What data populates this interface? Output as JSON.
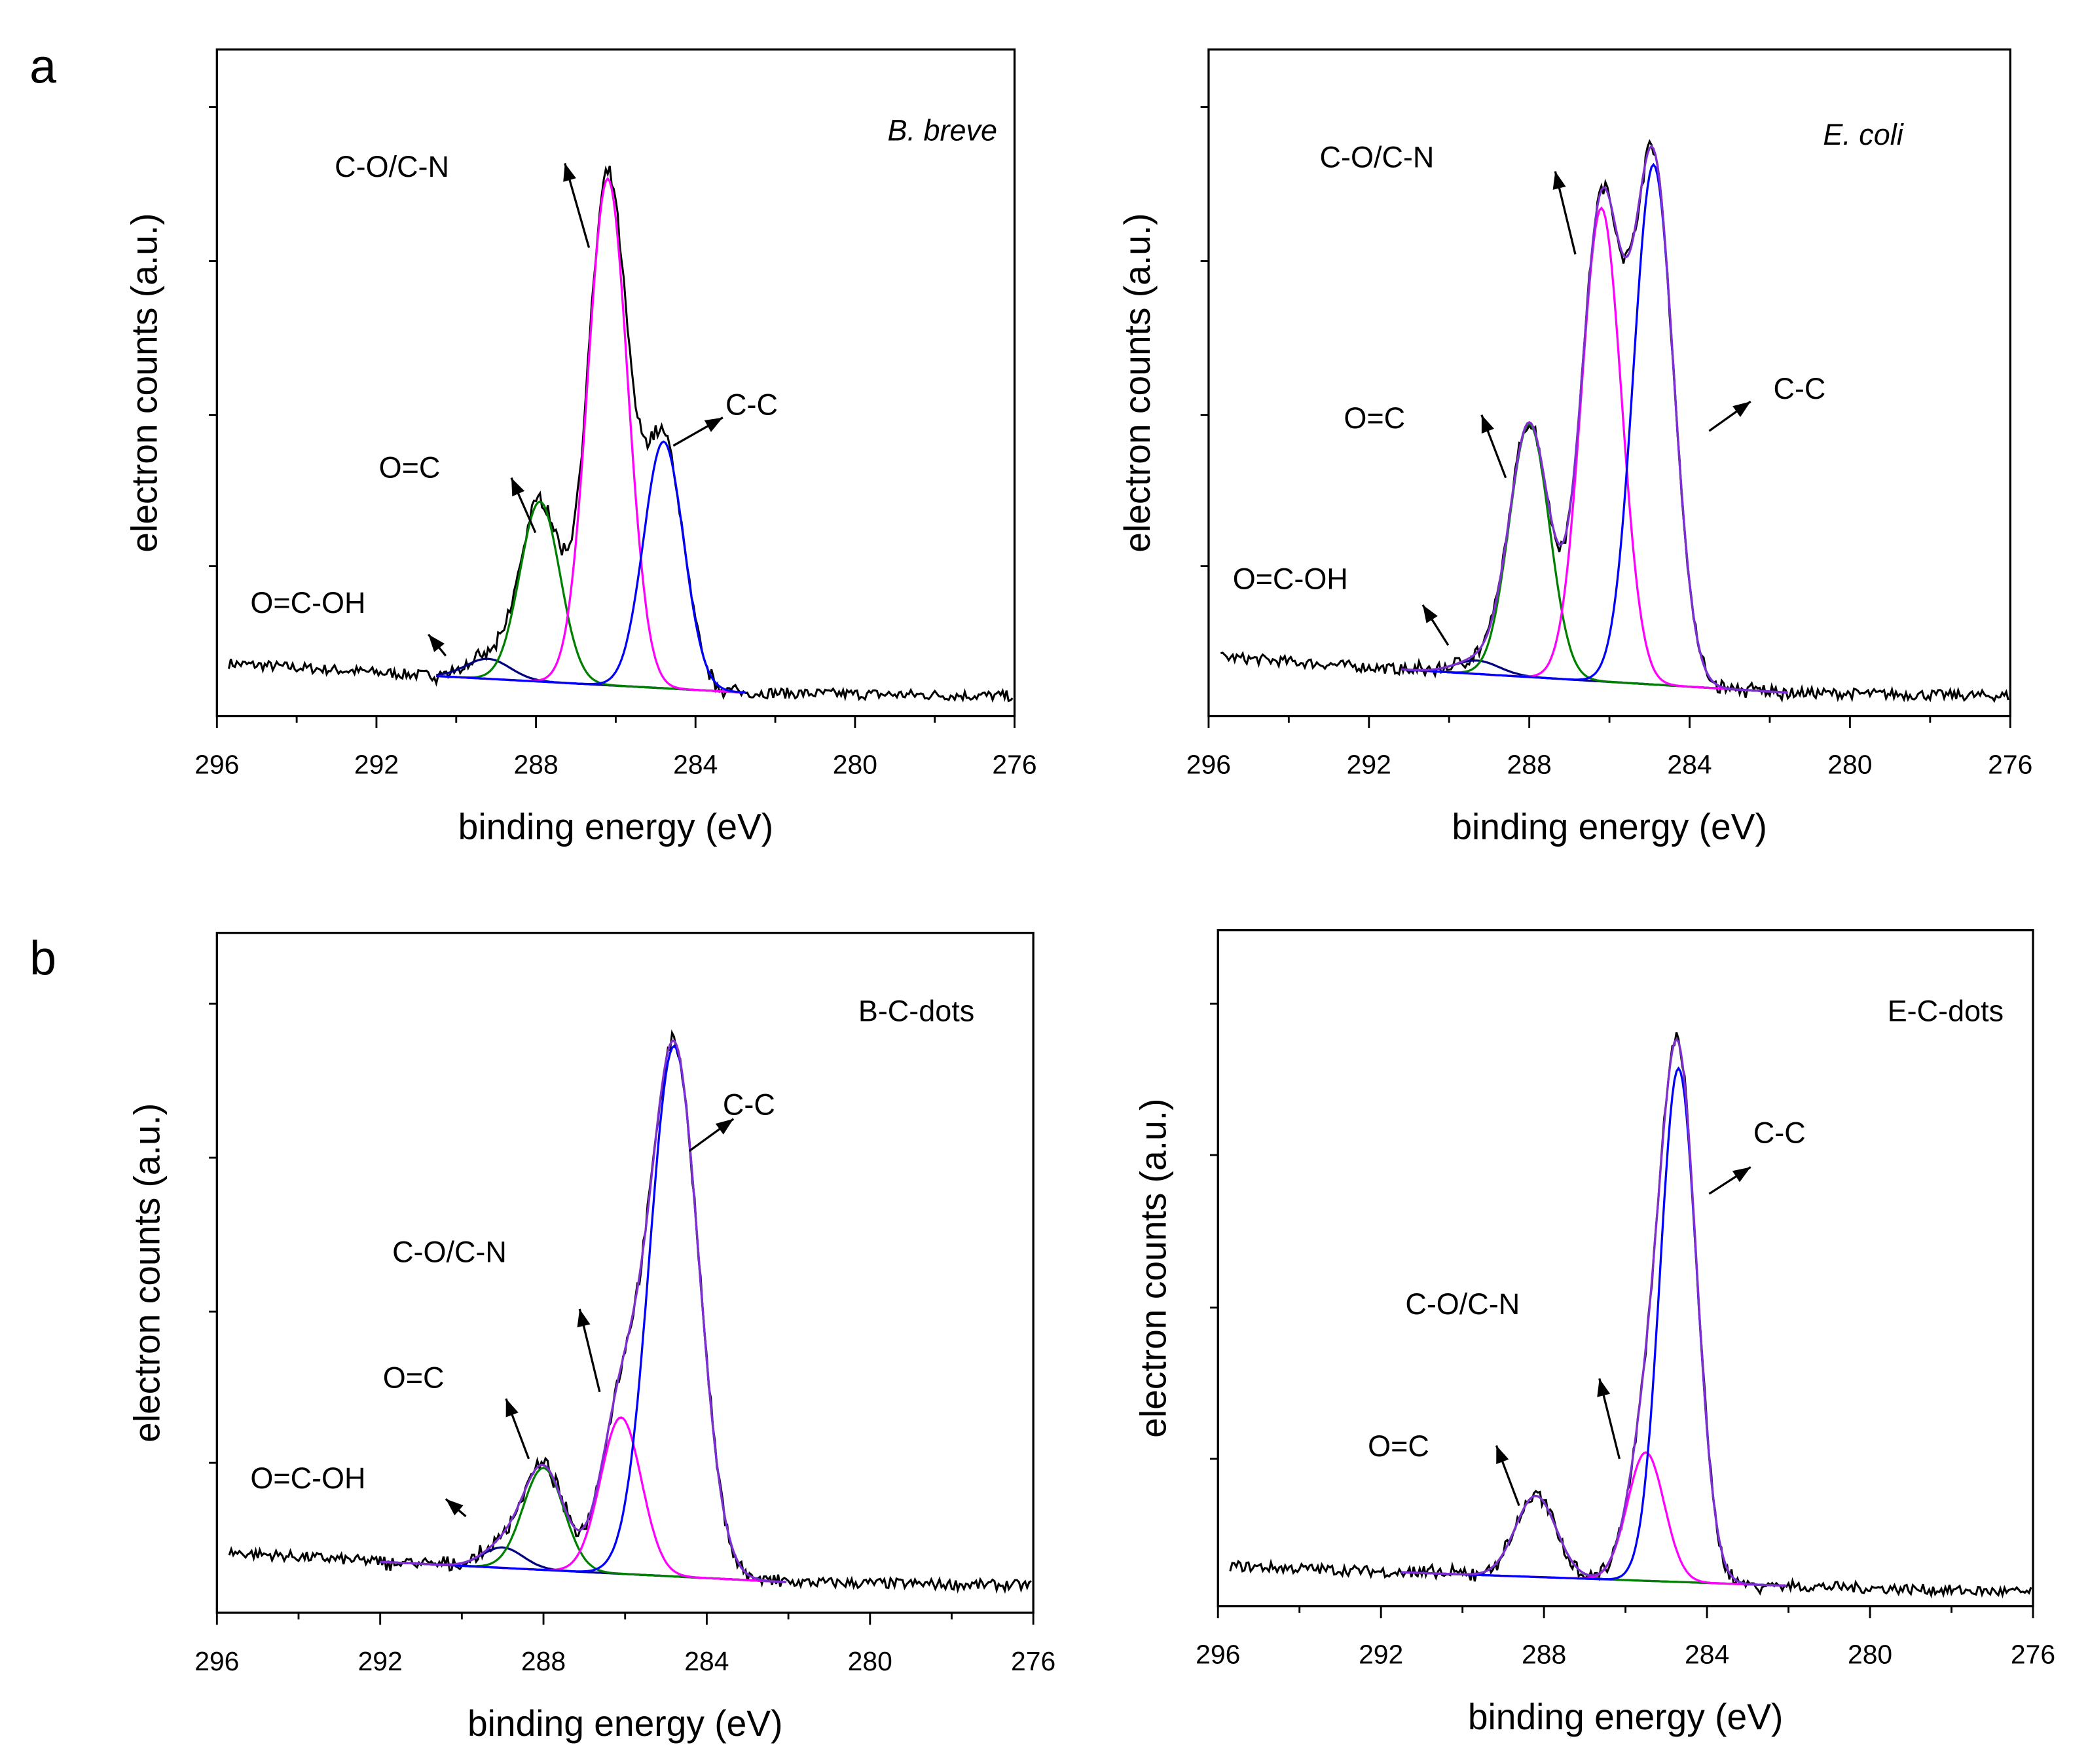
{
  "panel_letters": [
    "a",
    "b"
  ],
  "colors": {
    "envelope_a_left": "#000000",
    "envelope": "#7f2fd0",
    "C-C": "#0000ff",
    "C-O/C-N": "#ff00ff",
    "O=C": "#008000",
    "O=C-OH": "#000080",
    "baseline": "#1f1fb0",
    "baseline_marks": "#ff0000",
    "raw": "#000000"
  },
  "chart_data": [
    {
      "type": "line",
      "panel": "a",
      "title": "B. breve",
      "title_italic": true,
      "xlabel": "binding energy (eV)",
      "ylabel": "electron counts (a.u.)",
      "xlim": [
        296,
        276
      ],
      "ylim": [
        0,
        100
      ],
      "xticks": [
        296,
        292,
        288,
        284,
        280,
        276
      ],
      "background": {
        "left": 8,
        "right": 3,
        "fit_range": [
          290.5,
          282.7
        ],
        "fit_baseline": [
          6,
          3.5
        ]
      },
      "peaks": [
        {
          "name": "O=C-OH",
          "center": 289.2,
          "height": 3,
          "sigma": 0.55
        },
        {
          "name": "O=C",
          "center": 287.9,
          "height": 27,
          "sigma": 0.5
        },
        {
          "name": "C-O/C-N",
          "center": 286.2,
          "height": 76,
          "sigma": 0.5
        },
        {
          "name": "C-C",
          "center": 284.8,
          "height": 37,
          "sigma": 0.5
        }
      ],
      "annotations": [
        "C-O/C-N",
        "C-C",
        "O=C",
        "O=C-OH"
      ]
    },
    {
      "type": "line",
      "panel": "a",
      "title": "E. coli",
      "title_italic": true,
      "xlabel": "binding energy (eV)",
      "ylabel": "electron counts (a.u.)",
      "xlim": [
        296,
        276
      ],
      "ylim": [
        0,
        100
      ],
      "xticks": [
        296,
        292,
        288,
        284,
        280,
        276
      ],
      "background": {
        "left": 9,
        "right": 3,
        "fit_range": [
          291.2,
          281.5
        ],
        "fit_baseline": [
          7,
          3.5
        ]
      },
      "peaks": [
        {
          "name": "O=C-OH",
          "center": 289.3,
          "height": 2,
          "sigma": 0.55
        },
        {
          "name": "O=C",
          "center": 288.0,
          "height": 38,
          "sigma": 0.5
        },
        {
          "name": "C-O/C-N",
          "center": 286.2,
          "height": 71,
          "sigma": 0.5
        },
        {
          "name": "C-C",
          "center": 284.9,
          "height": 78,
          "sigma": 0.5
        }
      ],
      "annotations": [
        "C-O/C-N",
        "C-C",
        "O=C",
        "O=C-OH"
      ]
    },
    {
      "type": "line",
      "panel": "b",
      "title": "B-C-dots",
      "title_italic": false,
      "xlabel": "binding energy (eV)",
      "ylabel": "electron counts (a.u.)",
      "xlim": [
        296,
        276
      ],
      "ylim": [
        0,
        100
      ],
      "xticks": [
        296,
        292,
        288,
        284,
        280,
        276
      ],
      "background": {
        "left": 9,
        "right": 4,
        "fit_range": [
          292,
          282
        ],
        "fit_baseline": [
          7.5,
          4.5
        ]
      },
      "peaks": [
        {
          "name": "O=C-OH",
          "center": 289.0,
          "height": 3,
          "sigma": 0.5
        },
        {
          "name": "O=C",
          "center": 288.0,
          "height": 15,
          "sigma": 0.5
        },
        {
          "name": "C-O/C-N",
          "center": 286.1,
          "height": 23,
          "sigma": 0.5
        },
        {
          "name": "C-C",
          "center": 284.8,
          "height": 78,
          "sigma": 0.6
        }
      ],
      "annotations": [
        "C-C",
        "C-O/C-N",
        "O=C",
        "O=C-OH"
      ]
    },
    {
      "type": "line",
      "panel": "b",
      "title": "E-C-dots",
      "title_italic": false,
      "xlabel": "binding energy (eV)",
      "ylabel": "electron counts (a.u.)",
      "xlim": [
        296,
        276
      ],
      "ylim": [
        0,
        100
      ],
      "xticks": [
        296,
        292,
        288,
        284,
        280,
        276
      ],
      "background": {
        "left": 6,
        "right": 2,
        "fit_range": [
          291.5,
          282
        ],
        "fit_baseline": [
          5,
          3
        ]
      },
      "peaks": [
        {
          "name": "O=C",
          "center": 288.2,
          "height": 12,
          "sigma": 0.5
        },
        {
          "name": "C-O/C-N",
          "center": 285.5,
          "height": 19,
          "sigma": 0.45
        },
        {
          "name": "C-C",
          "center": 284.7,
          "height": 76,
          "sigma": 0.45
        }
      ],
      "annotations": [
        "C-C",
        "C-O/C-N",
        "O=C"
      ]
    }
  ]
}
